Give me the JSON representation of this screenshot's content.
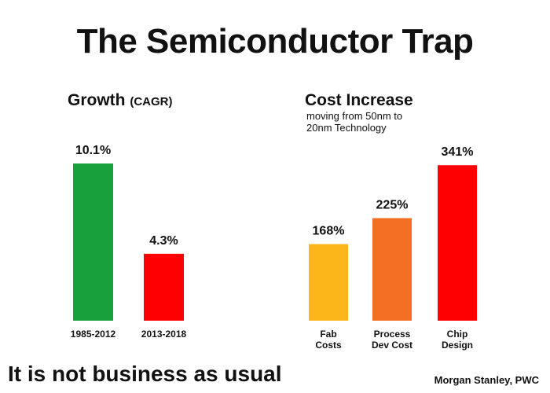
{
  "title": "The Semiconductor Trap",
  "footer": {
    "tagline": "It is not business as usual",
    "source": "Morgan Stanley, PWC"
  },
  "chart_data": [
    {
      "type": "bar",
      "title": "Growth",
      "title_suffix": "(CAGR)",
      "categories": [
        "1985-2012",
        "2013-2018"
      ],
      "values": [
        10.1,
        4.3
      ],
      "value_labels": [
        "10.1%",
        "4.3%"
      ],
      "colors": [
        "#18a03a",
        "#fe0000"
      ],
      "unit": "%",
      "grid": false
    },
    {
      "type": "bar",
      "title": "Cost Increase",
      "subtitle": [
        "moving from 50nm to",
        "20nm Technology"
      ],
      "categories": [
        [
          "Fab",
          "Costs"
        ],
        [
          "Process",
          "Dev Cost"
        ],
        [
          "Chip",
          "Design"
        ]
      ],
      "values": [
        168,
        225,
        341
      ],
      "value_labels": [
        "168%",
        "225%",
        "341%"
      ],
      "colors": [
        "#fbb71a",
        "#f26f23",
        "#fe0000"
      ],
      "unit": "%",
      "grid": false
    }
  ]
}
